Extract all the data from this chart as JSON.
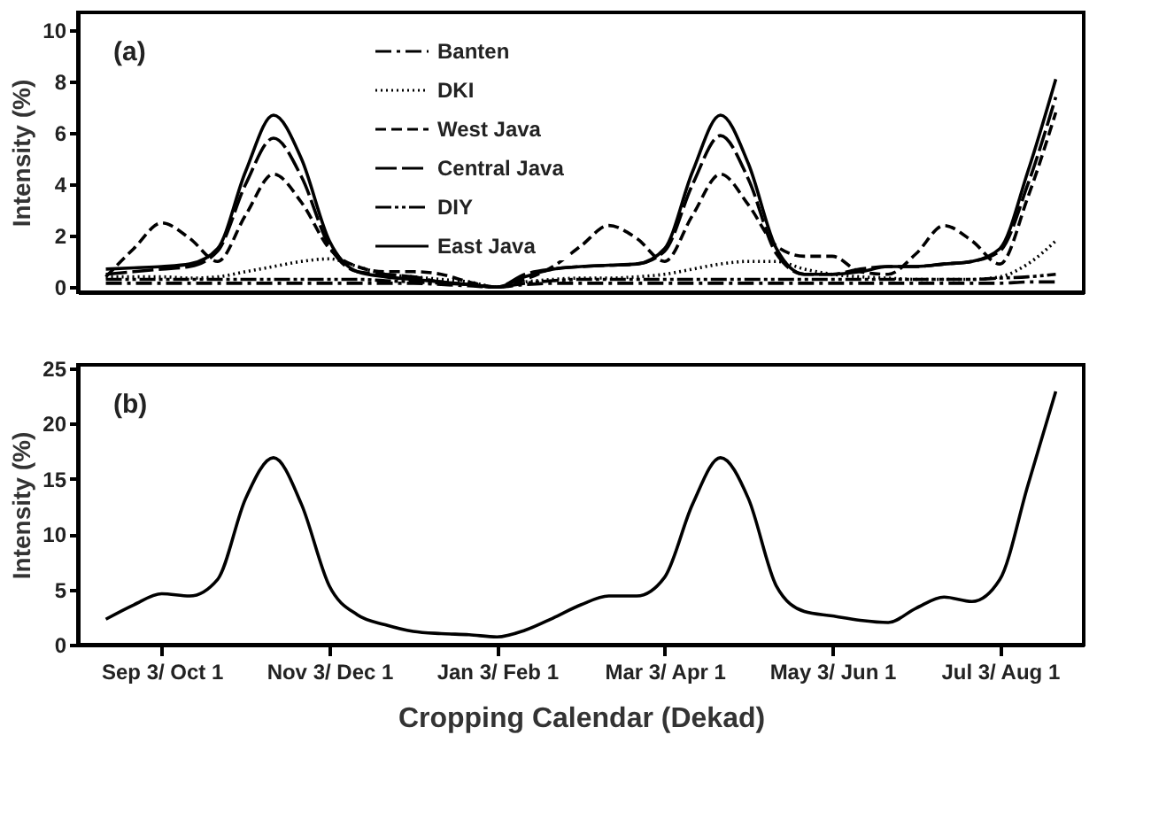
{
  "chart_data": [
    {
      "type": "line",
      "ylabel": "Intensity (%)",
      "annotations": [
        "(a)"
      ],
      "categories": [
        null,
        null,
        null,
        null,
        null,
        null,
        null,
        null,
        null,
        null,
        null,
        null,
        null,
        null,
        null,
        null,
        null,
        null,
        null,
        null,
        null,
        null,
        null,
        null,
        null,
        null,
        null,
        null,
        null,
        null,
        null,
        null,
        null,
        null,
        null
      ],
      "ylim": [
        -0.2,
        10.7
      ],
      "yticks": [
        0,
        2,
        4,
        6,
        8,
        10
      ],
      "tick_labels": "y",
      "grid": false,
      "legend": "top",
      "marker": "none",
      "series": [
        {
          "name": "Banten",
          "color": "#000000",
          "line_style": "dashdot",
          "values": [
            0.15,
            0.15,
            0.15,
            0.15,
            0.15,
            0.15,
            0.15,
            0.15,
            0.15,
            0.15,
            0.15,
            0.15,
            0.1,
            0.05,
            0.0,
            0.1,
            0.15,
            0.15,
            0.15,
            0.15,
            0.15,
            0.15,
            0.15,
            0.15,
            0.15,
            0.15,
            0.15,
            0.15,
            0.15,
            0.15,
            0.15,
            0.15,
            0.15,
            0.2,
            0.2
          ]
        },
        {
          "name": "DKI",
          "color": "#000000",
          "line_style": "dotted",
          "values": [
            0.4,
            0.4,
            0.4,
            0.35,
            0.4,
            0.6,
            0.8,
            1.0,
            1.1,
            0.8,
            0.5,
            0.4,
            0.3,
            0.2,
            0.0,
            0.2,
            0.3,
            0.35,
            0.35,
            0.4,
            0.5,
            0.7,
            0.9,
            1.0,
            1.0,
            0.7,
            0.5,
            0.4,
            0.35,
            0.3,
            0.3,
            0.3,
            0.4,
            0.9,
            1.8
          ]
        },
        {
          "name": "West Java",
          "color": "#000000",
          "line_style": "dashed",
          "values": [
            0.4,
            1.5,
            2.5,
            1.9,
            1.0,
            2.8,
            4.4,
            3.3,
            1.5,
            0.8,
            0.6,
            0.6,
            0.5,
            0.2,
            0.0,
            0.3,
            0.8,
            1.6,
            2.4,
            1.9,
            1.0,
            2.8,
            4.4,
            3.2,
            1.6,
            1.2,
            1.2,
            0.6,
            0.5,
            1.3,
            2.4,
            1.8,
            0.9,
            3.5,
            6.8
          ]
        },
        {
          "name": "Central Java",
          "color": "#000000",
          "line_style": "longdash",
          "values": [
            0.5,
            0.6,
            0.7,
            0.8,
            1.4,
            4.0,
            5.8,
            4.3,
            1.6,
            0.6,
            0.5,
            0.4,
            0.2,
            0.1,
            0.0,
            0.5,
            0.7,
            0.8,
            0.85,
            0.9,
            1.4,
            4.0,
            5.9,
            4.2,
            1.3,
            0.5,
            0.5,
            0.7,
            0.8,
            0.8,
            0.9,
            1.0,
            1.4,
            4.0,
            7.4
          ]
        },
        {
          "name": "DIY",
          "color": "#000000",
          "line_style": "dashdotdot",
          "values": [
            0.3,
            0.3,
            0.3,
            0.3,
            0.3,
            0.3,
            0.3,
            0.3,
            0.3,
            0.3,
            0.25,
            0.2,
            0.15,
            0.1,
            0.0,
            0.15,
            0.25,
            0.3,
            0.3,
            0.3,
            0.3,
            0.3,
            0.3,
            0.3,
            0.3,
            0.3,
            0.3,
            0.3,
            0.3,
            0.3,
            0.3,
            0.3,
            0.35,
            0.4,
            0.5
          ]
        },
        {
          "name": "East Java",
          "color": "#000000",
          "line_style": "solid",
          "values": [
            0.7,
            0.75,
            0.8,
            0.9,
            1.5,
            4.5,
            6.7,
            5.0,
            1.8,
            0.6,
            0.4,
            0.3,
            0.2,
            0.1,
            0.0,
            0.4,
            0.7,
            0.8,
            0.85,
            0.9,
            1.5,
            4.5,
            6.7,
            4.8,
            1.5,
            0.5,
            0.5,
            0.6,
            0.8,
            0.8,
            0.9,
            1.0,
            1.5,
            4.5,
            8.1
          ]
        }
      ]
    },
    {
      "type": "line",
      "xlabel": "Cropping Calendar (Dekad)",
      "ylabel": "Intensity (%)",
      "annotations": [
        "(b)"
      ],
      "categories": [
        null,
        null,
        "Sep 3/ Oct 1",
        null,
        null,
        null,
        null,
        null,
        "Nov 3/ Dec 1",
        null,
        null,
        null,
        null,
        null,
        "Jan 3/ Feb 1",
        null,
        null,
        null,
        null,
        null,
        "Mar 3/ Apr 1",
        null,
        null,
        null,
        null,
        null,
        "May 3/ Jun 1",
        null,
        null,
        null,
        null,
        null,
        "Jul 3/ Aug 1",
        null,
        null
      ],
      "ylim": [
        0,
        25.3
      ],
      "yticks": [
        0,
        5,
        10,
        15,
        20,
        25
      ],
      "grid": false,
      "legend": false,
      "marker": "none",
      "series": [
        {
          "color": "#000000",
          "line_style": "solid",
          "values": [
            2.3,
            3.6,
            4.6,
            4.4,
            5.9,
            13.2,
            16.9,
            12.7,
            5.3,
            2.7,
            1.8,
            1.2,
            1.0,
            0.9,
            0.7,
            1.3,
            2.4,
            3.6,
            4.4,
            4.4,
            6.1,
            12.7,
            16.9,
            13.2,
            5.3,
            3.0,
            2.6,
            2.2,
            2.0,
            3.3,
            4.3,
            3.9,
            5.9,
            14.4,
            22.9
          ]
        }
      ]
    }
  ]
}
